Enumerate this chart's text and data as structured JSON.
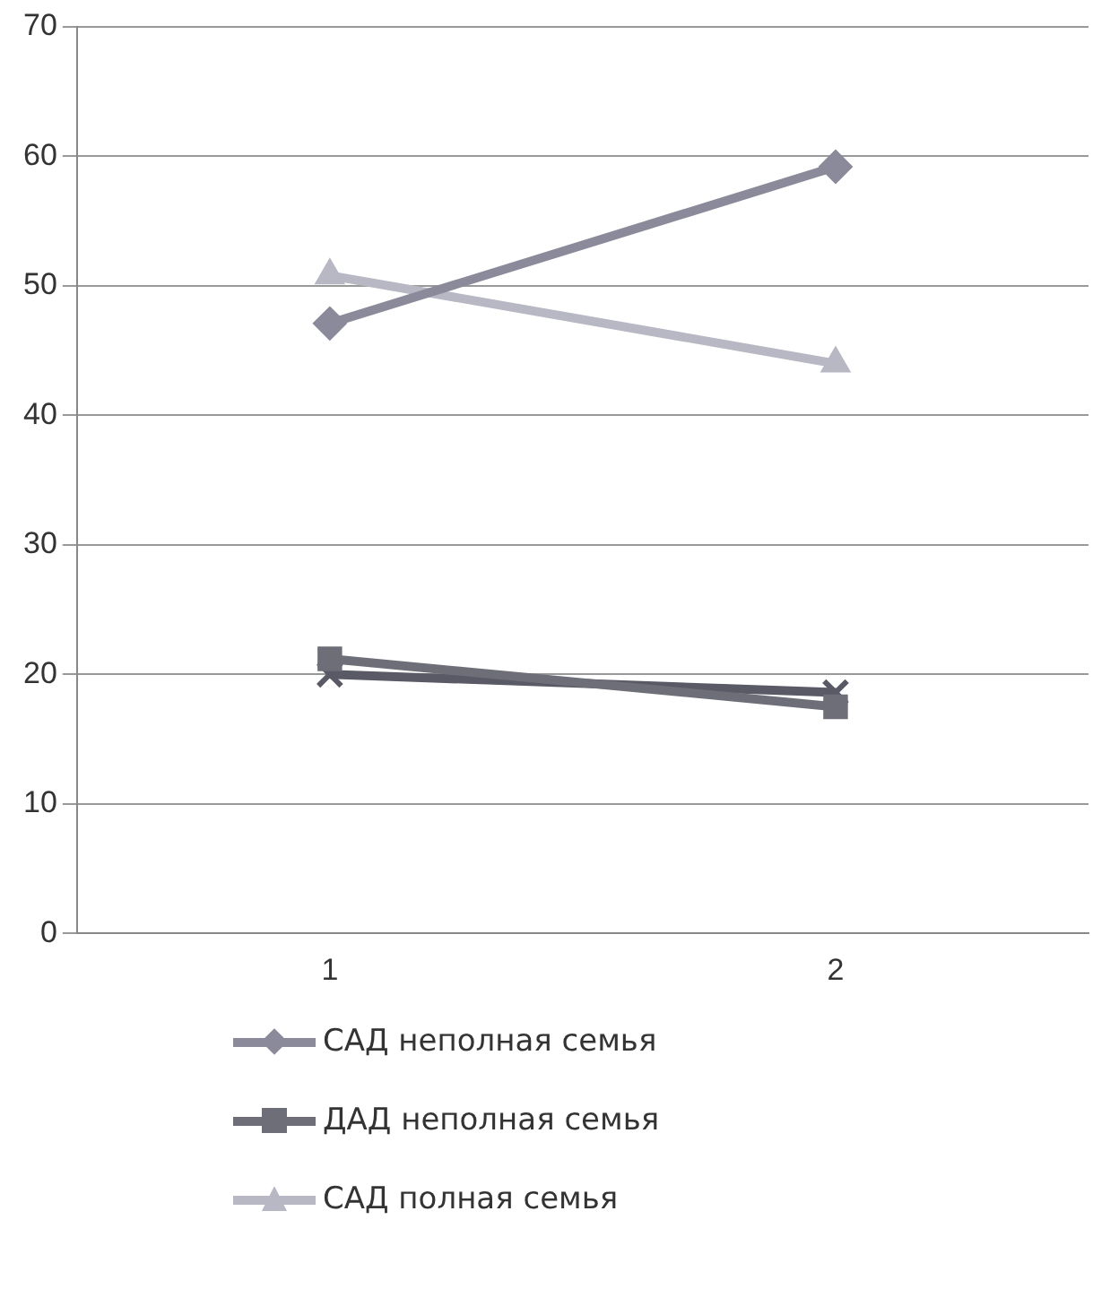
{
  "chart_data": {
    "type": "line",
    "categories": [
      "1",
      "2"
    ],
    "series": [
      {
        "name": "САД неполная семья",
        "color": "#8a8a9a",
        "marker": "diamond",
        "values": [
          47.1,
          59.2
        ]
      },
      {
        "name": "ДАД неполная семья",
        "color": "#6e6e78",
        "marker": "square",
        "values": [
          21.2,
          17.5
        ]
      },
      {
        "name": "САД полная семья",
        "color": "#b8b8c4",
        "marker": "triangle",
        "values": [
          50.8,
          44
        ]
      },
      {
        "color": "#5a5a66",
        "marker": "cross",
        "values": [
          20,
          18.6
        ]
      }
    ],
    "ylim": [
      0,
      70
    ],
    "yticks": [
      0,
      10,
      20,
      30,
      40,
      50,
      60,
      70
    ],
    "grid": "y",
    "legend": "bottom"
  }
}
